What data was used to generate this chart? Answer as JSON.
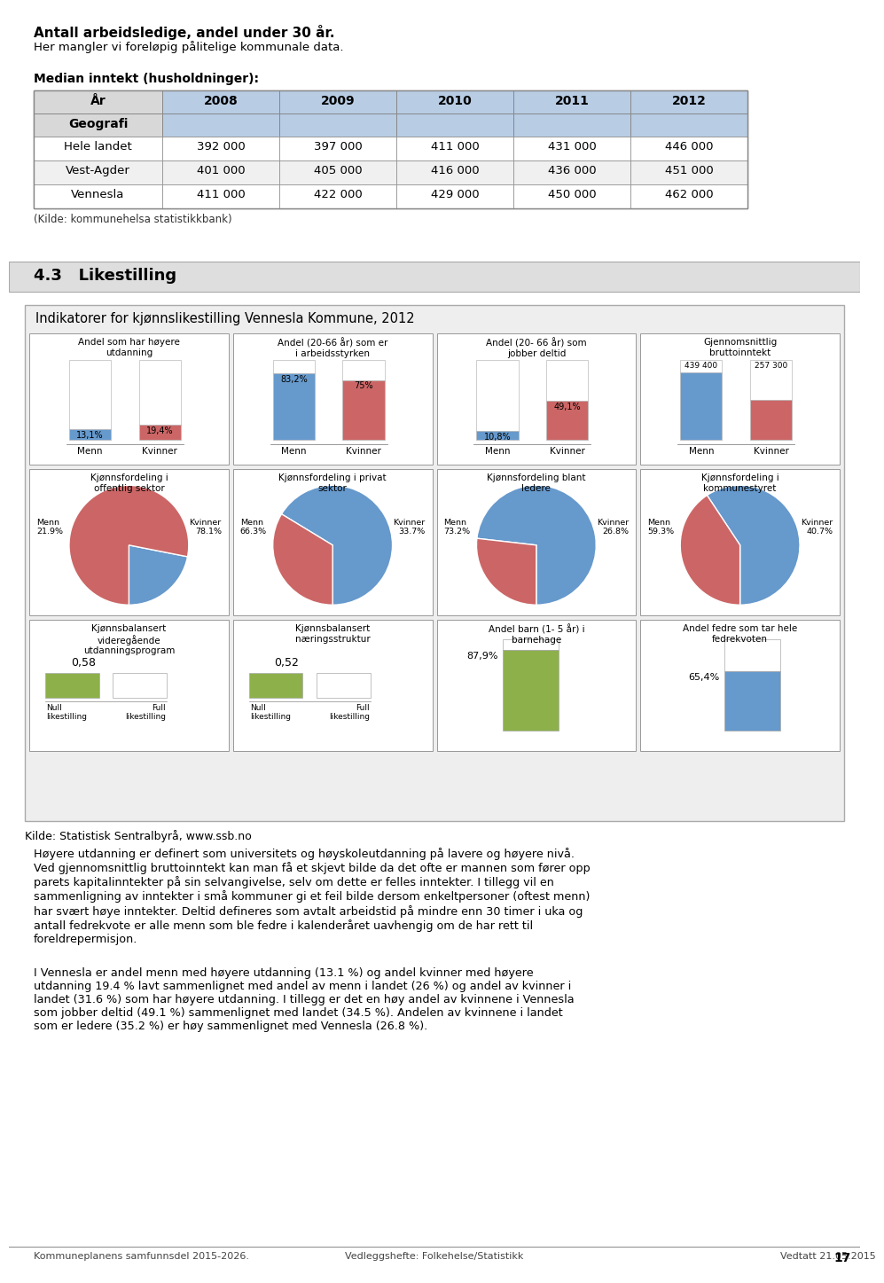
{
  "title1_bold": "Antall arbeidsledige, andel under 30 år.",
  "title1_sub": "Her mangler vi foreløpig pålitelige kommunale data.",
  "table_title": "Median inntekt (husholdninger):",
  "table_header_row1": "År",
  "table_header_row2": "Geografi",
  "table_years": [
    "2008",
    "2009",
    "2010",
    "2011",
    "2012"
  ],
  "table_rows": [
    [
      "Hele landet",
      "392 000",
      "397 000",
      "411 000",
      "431 000",
      "446 000"
    ],
    [
      "Vest-Agder",
      "401 000",
      "405 000",
      "416 000",
      "436 000",
      "451 000"
    ],
    [
      "Vennesla",
      "411 000",
      "422 000",
      "429 000",
      "450 000",
      "462 000"
    ]
  ],
  "table_source": "(Kilde: kommunehelsa statistikkbank)",
  "section_header": "4.3   Likestilling",
  "box_title": "Indikatorer for kjønnslikestilling Vennesla Kommune, 2012",
  "cell1_title": "Andel som har høyere\nutdanning",
  "cell1_menn_val": "13,1%",
  "cell1_kvinner_val": "19,4%",
  "cell1_menn_bar": 0.131,
  "cell1_kvinner_bar": 0.194,
  "cell2_title": "Andel (20-66 år) som er\ni arbeidsstyrken",
  "cell2_menn_val": "83,2%",
  "cell2_kvinner_val": "75%",
  "cell2_menn_bar": 0.832,
  "cell2_kvinner_bar": 0.75,
  "cell3_title": "Andel (20- 66 år) som\njobber deltid",
  "cell3_menn_val": "10,8%",
  "cell3_kvinner_val": "49,1%",
  "cell3_menn_bar": 0.108,
  "cell3_kvinner_bar": 0.491,
  "cell4_title": "Gjennomsnittlig\nbruttoinntekt",
  "cell4_menn_val": "439 400",
  "cell4_kvinner_val": "257 300",
  "cell4_menn_bar": 0.85,
  "cell4_kvinner_bar": 0.5,
  "cell5_title": "Kjønnsfordeling i\noffentlig sektor",
  "cell5_menn": 21.9,
  "cell5_kvinner": 78.1,
  "cell6_title": "Kjønnsfordeling i privat\nsektor",
  "cell6_menn": 66.3,
  "cell6_kvinner": 33.7,
  "cell7_title": "Kjønnsfordeling blant\nledere",
  "cell7_menn": 73.2,
  "cell7_kvinner": 26.8,
  "cell8_title": "Kjønnsfordeling i\nkommunestyret",
  "cell8_menn": 59.3,
  "cell8_kvinner": 40.7,
  "cell9_title": "Kjønnsbalansert\nvideregående\nutdanningsprogram",
  "cell9_val": "0,58",
  "cell10_title": "Kjønnsbalansert\nnæringsstruktur",
  "cell10_val": "0,52",
  "cell11_title": "Andel barn (1- 5 år) i\nbarnehage",
  "cell11_val": "87,9%",
  "cell11_bar": 0.879,
  "cell12_title": "Andel fedre som tar hele\nfedrekvoten",
  "cell12_val": "65,4%",
  "cell12_bar": 0.654,
  "source_line": "Kilde: Statistisk Sentralbyrå, www.ssb.no",
  "para1": "Høyere utdanning er definert som universitets og høyskoleutdanning på lavere og høyere nivå.\nVed gjennomsnittlig bruttoinntekt kan man få et skjevt bilde da det ofte er mannen som fører opp\nparets kapitalinntekter på sin selvangivelse, selv om dette er felles inntekter. I tillegg vil en\nsammenligning av inntekter i små kommuner gi et feil bilde dersom enkeltpersoner (oftest menn)\nhar svært høye inntekter. Deltid defineres som avtalt arbeidstid på mindre enn 30 timer i uka og\nantall fedrekvote er alle menn som ble fedre i kalenderåret uavhengig om de har rett til\nforeldrepermisjon.",
  "para2": "I Vennesla er andel menn med høyere utdanning (13.1 %) og andel kvinner med høyere\nutdanning 19.4 % lavt sammenlignet med andel av menn i landet (26 %) og andel av kvinner i\nlandet (31.6 %) som har høyere utdanning. I tillegg er det en høy andel av kvinnene i Vennesla\nsom jobber deltid (49.1 %) sammenlignet med landet (34.5 %). Andelen av kvinnene i landet\nsom er ledere (35.2 %) er høy sammenlignet med Vennesla (26.8 %).",
  "footer_left": "Kommuneplanens samfunnsdel 2015-2026.",
  "footer_mid": "Vedleggshefte: Folkehelse/Statistikk",
  "footer_right": "Vedtatt 21.05.2015",
  "footer_num": "17",
  "color_blue": "#6699CC",
  "color_red": "#CC6666",
  "color_green": "#8DB04B",
  "color_light_blue_header": "#B8CCE4",
  "color_header_gray": "#D8D8D8"
}
